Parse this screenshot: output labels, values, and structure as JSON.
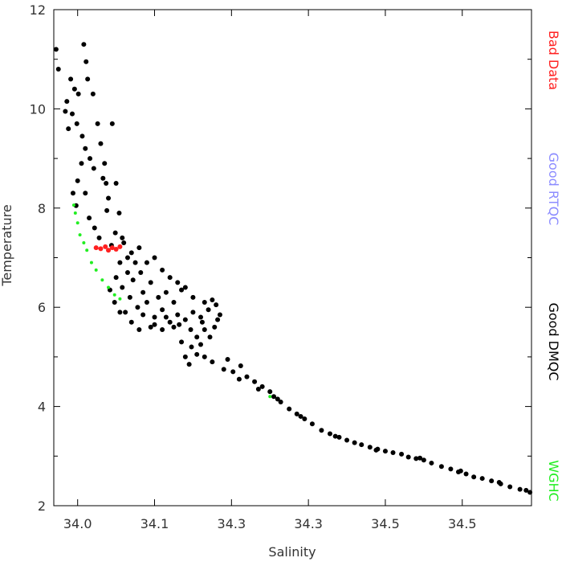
{
  "chart_data": {
    "type": "scatter",
    "x_label": "Salinity",
    "y_label": "Temperature",
    "xlim": [
      34.019,
      34.64
    ],
    "ylim": [
      2,
      12
    ],
    "xticks": [
      {
        "value": 34.05,
        "label": "34.0"
      },
      {
        "value": 34.15,
        "label": "34.1"
      },
      {
        "value": 34.25,
        "label": "34.3"
      },
      {
        "value": 34.35,
        "label": "34.3"
      },
      {
        "value": 34.45,
        "label": "34.5"
      },
      {
        "value": 34.55,
        "label": "34.5"
      }
    ],
    "yticks": [
      2,
      4,
      6,
      8,
      10,
      12
    ],
    "y_minor_ticks": [
      3,
      5,
      7,
      9,
      11
    ],
    "series": [
      {
        "name": "Bad Data",
        "color": "#ff2020",
        "x": [
          34.074,
          34.08,
          34.086,
          34.09,
          34.095,
          34.1,
          34.105
        ],
        "values": [
          7.2,
          7.18,
          7.22,
          7.15,
          7.2,
          7.17,
          7.22
        ]
      },
      {
        "name": "Good RTQC",
        "color": "#8c8cff",
        "x": [],
        "values": []
      },
      {
        "name": "Good DMQC",
        "color": "#000000",
        "x": [
          34.022,
          34.025,
          34.058,
          34.061,
          34.041,
          34.046,
          34.036,
          34.051,
          34.043,
          34.038,
          34.049,
          34.056,
          34.034,
          34.07,
          34.063,
          34.06,
          34.066,
          34.076,
          34.08,
          34.085,
          34.087,
          34.09,
          34.088,
          34.083,
          34.071,
          34.055,
          34.05,
          34.044,
          34.048,
          34.06,
          34.065,
          34.072,
          34.078,
          34.095,
          34.1,
          34.104,
          34.099,
          34.094,
          34.11,
          34.12,
          34.125,
          34.115,
          34.105,
          34.1,
          34.108,
          34.118,
          34.128,
          34.135,
          34.14,
          34.15,
          34.16,
          34.17,
          34.18,
          34.19,
          34.2,
          34.21,
          34.22,
          34.23,
          34.235,
          34.228,
          34.215,
          34.205,
          34.198,
          34.19,
          34.195,
          34.205,
          34.185,
          34.175,
          34.16,
          34.145,
          34.13,
          34.12,
          34.112,
          34.135,
          34.145,
          34.155,
          34.165,
          34.175,
          34.19,
          34.2,
          34.215,
          34.225,
          34.14,
          34.15,
          34.13,
          34.115,
          34.108,
          34.122,
          34.132,
          34.16,
          34.17,
          34.18,
          34.185,
          34.098,
          34.092,
          34.105,
          34.15,
          34.165,
          34.182,
          34.197,
          34.212,
          34.232,
          34.222,
          34.21,
          34.215,
          34.225,
          34.24,
          34.252,
          34.262,
          34.27,
          34.28,
          34.29,
          34.3,
          34.31,
          34.314,
          34.325,
          34.335,
          34.345,
          34.355,
          34.367,
          34.378,
          34.39,
          34.4,
          34.41,
          34.419,
          34.43,
          34.44,
          34.45,
          34.46,
          34.471,
          34.48,
          34.49,
          34.5,
          34.51,
          34.523,
          34.535,
          34.545,
          34.555,
          34.565,
          34.576,
          34.588,
          34.6,
          34.612,
          34.625,
          34.633,
          34.638,
          34.245,
          34.26,
          34.285,
          34.305,
          34.34,
          34.385,
          34.438,
          34.495,
          34.548,
          34.598
        ],
        "values": [
          11.2,
          10.8,
          11.3,
          10.95,
          10.6,
          10.4,
          10.15,
          10.3,
          9.9,
          9.6,
          9.7,
          9.45,
          9.95,
          10.3,
          10.6,
          9.2,
          9.0,
          9.7,
          9.3,
          8.9,
          8.5,
          8.2,
          7.95,
          8.6,
          8.8,
          8.9,
          8.55,
          8.3,
          8.05,
          8.3,
          7.8,
          7.6,
          7.4,
          9.7,
          8.5,
          7.9,
          7.5,
          7.25,
          7.3,
          7.1,
          6.9,
          6.7,
          6.9,
          6.6,
          6.4,
          6.2,
          6.0,
          5.85,
          6.1,
          5.8,
          5.95,
          5.7,
          5.85,
          5.75,
          5.9,
          5.8,
          5.95,
          6.05,
          5.85,
          5.6,
          5.55,
          5.4,
          5.2,
          5.0,
          4.85,
          5.05,
          5.3,
          5.6,
          5.55,
          5.6,
          5.55,
          5.7,
          5.9,
          6.3,
          6.5,
          6.2,
          6.3,
          6.1,
          6.4,
          6.2,
          6.1,
          6.15,
          6.9,
          7.0,
          7.2,
          7.0,
          7.4,
          6.55,
          6.7,
          6.75,
          6.6,
          6.5,
          6.35,
          6.1,
          6.35,
          5.9,
          5.65,
          5.8,
          5.65,
          5.55,
          5.7,
          5.75,
          5.4,
          5.25,
          5.0,
          4.9,
          4.75,
          4.7,
          4.82,
          4.6,
          4.5,
          4.4,
          4.3,
          4.15,
          4.09,
          3.95,
          3.85,
          3.75,
          3.65,
          3.52,
          3.45,
          3.38,
          3.32,
          3.27,
          3.23,
          3.18,
          3.14,
          3.1,
          3.07,
          3.04,
          2.98,
          2.95,
          2.92,
          2.86,
          2.79,
          2.74,
          2.68,
          2.64,
          2.58,
          2.55,
          2.5,
          2.44,
          2.38,
          2.33,
          2.31,
          2.27,
          4.95,
          4.55,
          4.35,
          4.2,
          3.8,
          3.4,
          3.12,
          2.96,
          2.7,
          2.47
        ]
      },
      {
        "name": "WGHC",
        "color": "#22ee22",
        "x": [
          34.045,
          34.047,
          34.05,
          34.053,
          34.058,
          34.062,
          34.068,
          34.074,
          34.082,
          34.09,
          34.098,
          34.105,
          34.3
        ],
        "values": [
          8.06,
          7.9,
          7.7,
          7.46,
          7.3,
          7.15,
          6.9,
          6.75,
          6.55,
          6.4,
          6.25,
          6.17,
          4.2
        ]
      }
    ]
  }
}
